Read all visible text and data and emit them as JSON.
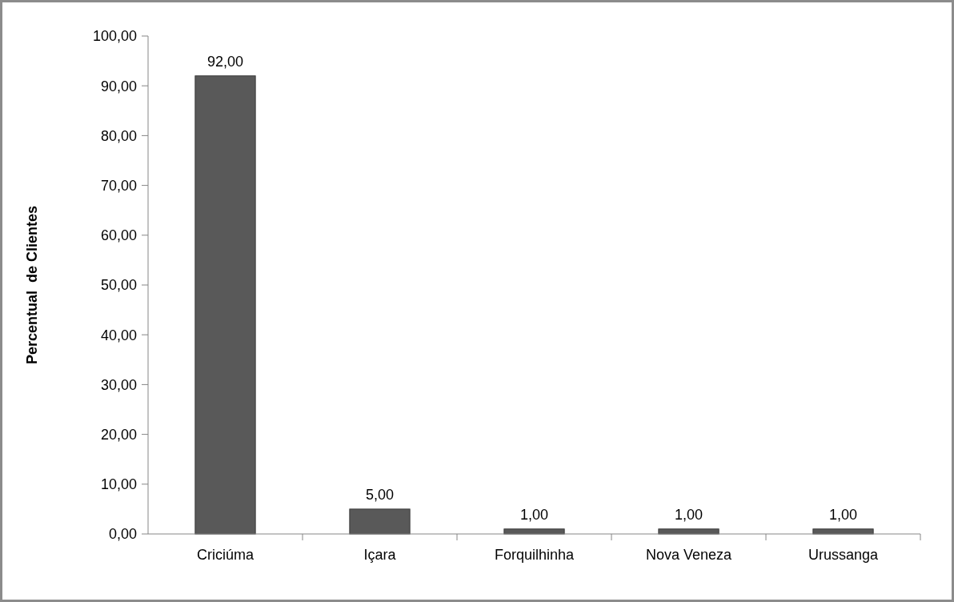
{
  "chart_data": {
    "type": "bar",
    "ylabel": "Percentual  de Clientes",
    "categories": [
      "Criciúma",
      "Içara",
      "Forquilhinha",
      "Nova Veneza",
      "Urussanga"
    ],
    "values": [
      92,
      5,
      1,
      1,
      1
    ],
    "value_labels": [
      "92,00",
      "5,00",
      "1,00",
      "1,00",
      "1,00"
    ],
    "color": "#595959",
    "ylim": [
      0,
      100
    ],
    "yticks": [
      {
        "value": 0,
        "label": "0,00"
      },
      {
        "value": 10,
        "label": "10,00"
      },
      {
        "value": 20,
        "label": "20,00"
      },
      {
        "value": 30,
        "label": "30,00"
      },
      {
        "value": 40,
        "label": "40,00"
      },
      {
        "value": 50,
        "label": "50,00"
      },
      {
        "value": 60,
        "label": "60,00"
      },
      {
        "value": 70,
        "label": "70,00"
      },
      {
        "value": 80,
        "label": "80,00"
      },
      {
        "value": 90,
        "label": "90,00"
      },
      {
        "value": 100,
        "label": "100,00"
      }
    ],
    "grid": false
  }
}
